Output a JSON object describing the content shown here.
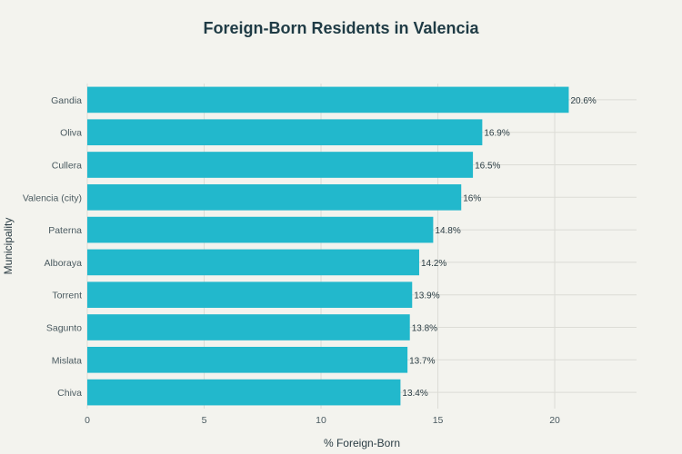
{
  "chart_data": {
    "type": "bar",
    "orientation": "horizontal",
    "title": "Foreign-Born Residents in Valencia",
    "xlabel": "% Foreign-Born",
    "ylabel": "Municipality",
    "categories": [
      "Gandia",
      "Oliva",
      "Cullera",
      "Valencia (city)",
      "Paterna",
      "Alboraya",
      "Torrent",
      "Sagunto",
      "Mislata",
      "Chiva"
    ],
    "values": [
      20.6,
      16.9,
      16.5,
      16,
      14.8,
      14.2,
      13.9,
      13.8,
      13.7,
      13.4
    ],
    "value_labels": [
      "20.6%",
      "16.9%",
      "16.5%",
      "16%",
      "14.8%",
      "14.2%",
      "13.9%",
      "13.8%",
      "13.7%",
      "13.4%"
    ],
    "xlim": [
      0,
      23.5
    ],
    "xticks": [
      0,
      5,
      10,
      15,
      20
    ],
    "grid": true,
    "bar_color": "#22b8cc"
  }
}
